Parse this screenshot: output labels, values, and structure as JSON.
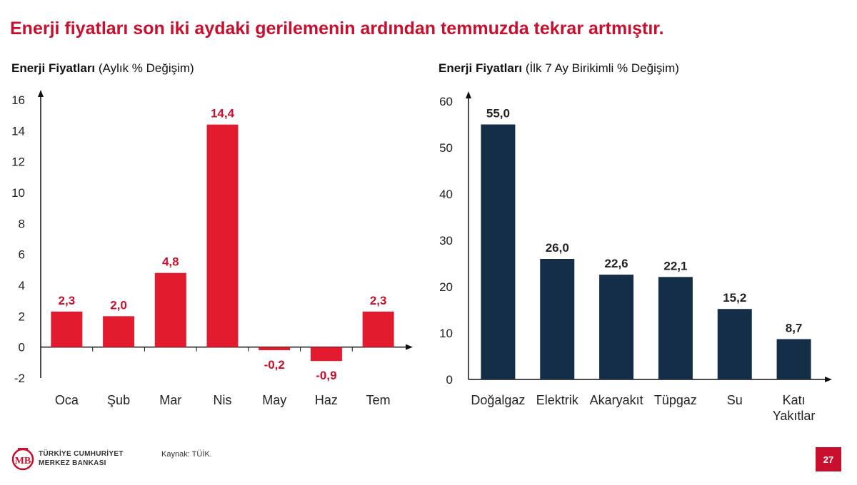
{
  "headline": "Enerji fiyatları son iki aydaki gerilemenin ardından temmuzda tekrar artmıştır.",
  "colors": {
    "accent": "#c8102e",
    "dark": "#142e48"
  },
  "chart_data": [
    {
      "type": "bar",
      "title_bold": "Enerji Fiyatları",
      "title_rest": " (Aylık % Değişim)",
      "categories": [
        "Oca",
        "Şub",
        "Mar",
        "Nis",
        "May",
        "Haz",
        "Tem"
      ],
      "values": [
        2.3,
        2.0,
        4.8,
        14.4,
        -0.2,
        -0.9,
        2.3
      ],
      "value_labels": [
        "2,3",
        "2,0",
        "4,8",
        "14,4",
        "-0,2",
        "-0,9",
        "2,3"
      ],
      "yticks": [
        "16",
        "14",
        "12",
        "10",
        "8",
        "6",
        "4",
        "2",
        "0",
        "-2"
      ],
      "ylim": [
        -2,
        16
      ],
      "color": "#e31b2e"
    },
    {
      "type": "bar",
      "title_bold": "Enerji Fiyatları",
      "title_rest": " (İlk 7 Ay Birikimli % Değişim)",
      "categories": [
        "Doğalgaz",
        "Elektrik",
        "Akaryakıt",
        "Tüpgaz",
        "Su",
        "Katı Yakıtlar"
      ],
      "values": [
        55.0,
        26.0,
        22.6,
        22.1,
        15.2,
        8.7
      ],
      "value_labels": [
        "55,0",
        "26,0",
        "22,6",
        "22,1",
        "15,2",
        "8,7"
      ],
      "yticks": [
        "60",
        "50",
        "40",
        "30",
        "20",
        "10",
        "0"
      ],
      "ylim": [
        0,
        60
      ],
      "color": "#142e48"
    }
  ],
  "footer": {
    "logo_line1": "TÜRKİYE CUMHURİYET",
    "logo_line2": "MERKEZ BANKASI",
    "source": "Kaynak: TÜİK.",
    "page": "27"
  }
}
